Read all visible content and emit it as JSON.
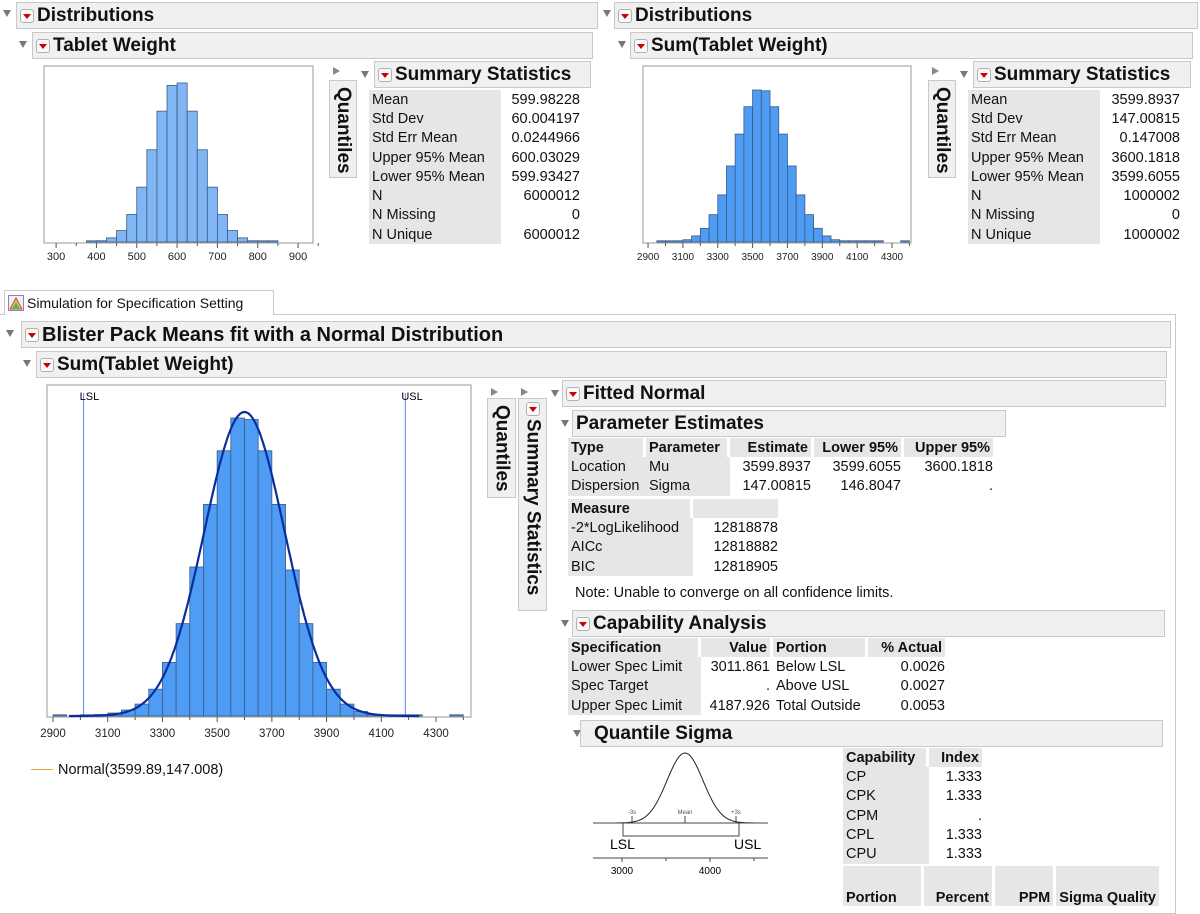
{
  "top_left": {
    "section_title": "Distributions",
    "var_title": "Tablet Weight",
    "quantiles_label": "Quantiles",
    "summary_title": "Summary Statistics",
    "summary": [
      [
        "Mean",
        "599.98228"
      ],
      [
        "Std Dev",
        "60.004197"
      ],
      [
        "Std Err Mean",
        "0.0244966"
      ],
      [
        "Upper 95% Mean",
        "600.03029"
      ],
      [
        "Lower 95% Mean",
        "599.93427"
      ],
      [
        "N",
        "6000012"
      ],
      [
        "N Missing",
        "0"
      ],
      [
        "N Unique",
        "6000012"
      ]
    ]
  },
  "top_right": {
    "section_title": "Distributions",
    "var_title": "Sum(Tablet Weight)",
    "quantiles_label": "Quantiles",
    "summary_title": "Summary Statistics",
    "summary": [
      [
        "Mean",
        "3599.8937"
      ],
      [
        "Std Dev",
        "147.00815"
      ],
      [
        "Std Err Mean",
        "0.147008"
      ],
      [
        "Upper 95% Mean",
        "3600.1818"
      ],
      [
        "Lower 95% Mean",
        "3599.6055"
      ],
      [
        "N",
        "1000002"
      ],
      [
        "N Missing",
        "0"
      ],
      [
        "N Unique",
        "1000002"
      ]
    ]
  },
  "tab": {
    "label": "Simulation for Specification Setting"
  },
  "report": {
    "title": "Blister Pack Means fit with a Normal Distribution",
    "var_title": "Sum(Tablet Weight)",
    "quantiles_label": "Quantiles",
    "summary_label": "Summary Statistics",
    "legend": "Normal(3599.89,147.008)",
    "legend_color": "#f0a040",
    "fitted_title": "Fitted Normal",
    "param_title": "Parameter Estimates",
    "param_headers": [
      "Type",
      "Parameter",
      "Estimate",
      "Lower 95%",
      "Upper 95%"
    ],
    "param_rows": [
      [
        "Location",
        "Mu",
        "3599.8937",
        "3599.6055",
        "3600.1818"
      ],
      [
        "Dispersion",
        "Sigma",
        "147.00815",
        "146.8047",
        "."
      ]
    ],
    "measure_headers": [
      "Measure",
      ""
    ],
    "measure_rows": [
      [
        "-2*LogLikelihood",
        "12818878"
      ],
      [
        "AICc",
        "12818882"
      ],
      [
        "BIC",
        "12818905"
      ]
    ],
    "note": "Note: Unable to converge on all confidence limits.",
    "capability_title": "Capability Analysis",
    "cap_headers": [
      "Specification",
      "Value",
      "Portion",
      "% Actual"
    ],
    "cap_rows": [
      [
        "Lower Spec Limit",
        "3011.861",
        "Below LSL",
        "0.0026"
      ],
      [
        "Spec Target",
        ".",
        "Above USL",
        "0.0027"
      ],
      [
        "Upper Spec Limit",
        "4187.926",
        "Total Outside",
        "0.0053"
      ]
    ],
    "quantile_sigma_title": "Quantile Sigma",
    "sigma_diagram": {
      "minus3s": "-3s",
      "mean": "Mean",
      "plus3s": "+3s",
      "lsl": "LSL",
      "usl": "USL",
      "ticks": [
        "3000",
        "4000"
      ]
    },
    "index_headers": [
      "Capability",
      "Index"
    ],
    "index_rows": [
      [
        "CP",
        "1.333"
      ],
      [
        "CPK",
        "1.333"
      ],
      [
        "CPM",
        "."
      ],
      [
        "CPL",
        "1.333"
      ],
      [
        "CPU",
        "1.333"
      ]
    ],
    "portion_headers": [
      "Portion",
      "Percent",
      "PPM",
      "Sigma Quality"
    ]
  },
  "chart_data": [
    {
      "type": "bar",
      "title": "",
      "xlabel": "",
      "ylabel": "",
      "xlim": [
        270,
        937
      ],
      "ticks": [
        300,
        400,
        500,
        600,
        700,
        800,
        900
      ],
      "bin_width": 25,
      "bins_low": [
        375,
        400,
        425,
        450,
        475,
        500,
        525,
        550,
        575,
        600,
        625,
        650,
        675,
        700,
        725,
        750,
        775,
        800,
        825
      ],
      "relative_heights": [
        0.002,
        0.008,
        0.026,
        0.072,
        0.173,
        0.345,
        0.58,
        0.823,
        0.985,
        1.0,
        0.823,
        0.58,
        0.345,
        0.173,
        0.072,
        0.026,
        0.008,
        0.002,
        0.001
      ],
      "color": "#80b6f4"
    },
    {
      "type": "bar",
      "title": "",
      "xlabel": "",
      "ylabel": "",
      "xlim": [
        2871,
        4409
      ],
      "ticks": [
        2900,
        3100,
        3300,
        3500,
        3700,
        3900,
        4100,
        4300
      ],
      "bin_width": 50,
      "bins_low": [
        2950,
        3000,
        3050,
        3100,
        3150,
        3200,
        3250,
        3300,
        3350,
        3400,
        3450,
        3500,
        3550,
        3600,
        3650,
        3700,
        3750,
        3800,
        3850,
        3900,
        3950,
        4000,
        4050,
        4100,
        4150,
        4200,
        4350
      ],
      "relative_heights": [
        0.002,
        0.002,
        0.005,
        0.015,
        0.04,
        0.09,
        0.18,
        0.31,
        0.5,
        0.71,
        0.89,
        1.0,
        0.995,
        0.89,
        0.71,
        0.5,
        0.31,
        0.18,
        0.09,
        0.04,
        0.015,
        0.005,
        0.002,
        0.002,
        0.002,
        0.002,
        0.004
      ],
      "color": "#4f9cf5"
    },
    {
      "type": "bar",
      "title": "",
      "xlabel": "",
      "ylabel": "",
      "xlim": [
        2878,
        4428
      ],
      "ticks": [
        2900,
        3100,
        3300,
        3500,
        3700,
        3900,
        4100,
        4300
      ],
      "bin_width": 50,
      "bins_low": [
        2900,
        3000,
        3050,
        3100,
        3150,
        3200,
        3250,
        3300,
        3350,
        3400,
        3450,
        3500,
        3550,
        3600,
        3650,
        3700,
        3750,
        3800,
        3850,
        3900,
        3950,
        4000,
        4050,
        4100,
        4150,
        4200,
        4350
      ],
      "relative_heights": [
        0.002,
        0.002,
        0.005,
        0.01,
        0.02,
        0.04,
        0.09,
        0.18,
        0.31,
        0.5,
        0.71,
        0.89,
        1.0,
        0.995,
        0.89,
        0.71,
        0.49,
        0.31,
        0.18,
        0.09,
        0.04,
        0.015,
        0.005,
        0.002,
        0.002,
        0.002,
        0.002
      ],
      "color": "#4f9cf5",
      "fit": {
        "name": "Normal(3599.89,147.008)",
        "mean": 3599.89,
        "sd": 147.008,
        "color": "#0a2e9e"
      },
      "spec_lines": [
        {
          "label": "LSL",
          "value": 3011.861
        },
        {
          "label": "USL",
          "value": 4187.926
        }
      ],
      "spec_line_color": "#5a7ff0"
    }
  ]
}
